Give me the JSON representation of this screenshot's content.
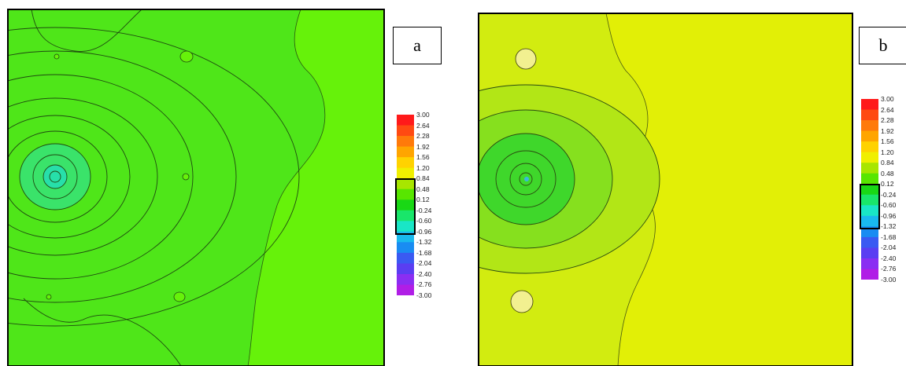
{
  "chart_data": [
    {
      "type": "heatmap",
      "panel_label": "a",
      "colorbar": {
        "ticks": [
          "3.00",
          "2.64",
          "2.28",
          "1.92",
          "1.56",
          "1.20",
          "0.84",
          "0.48",
          "0.12",
          "-0.24",
          "-0.60",
          "-0.96",
          "-1.32",
          "-1.68",
          "-2.04",
          "-2.40",
          "-2.76",
          "-3.00"
        ],
        "highlighted_range": [
          "0.84",
          "-0.96"
        ]
      },
      "background_color": "#62ee12",
      "region_colors": [
        "#66f20a",
        "#4fe619",
        "#3ae36a",
        "#27dfaa"
      ],
      "features": [
        "concentric contour rings centered on the left edge",
        "small isolated islands",
        "wavy boundary in the right third"
      ]
    },
    {
      "type": "heatmap",
      "panel_label": "b",
      "colorbar": {
        "ticks": [
          "3.00",
          "2.64",
          "2.28",
          "1.92",
          "1.56",
          "1.20",
          "0.84",
          "0.48",
          "0.12",
          "-0.24",
          "-0.60",
          "-0.96",
          "-1.32",
          "-1.68",
          "-2.04",
          "-2.40",
          "-2.76",
          "-3.00"
        ],
        "highlighted_range": [
          "0.12",
          "-1.32"
        ]
      },
      "background_color": "#e2ef06",
      "region_colors": [
        "#d2ec10",
        "#b2e616",
        "#86e01e",
        "#3fd72b"
      ],
      "features": [
        "nested lobes centered on the left edge",
        "small isolated islands",
        "wavy boundary in the middle"
      ]
    }
  ]
}
